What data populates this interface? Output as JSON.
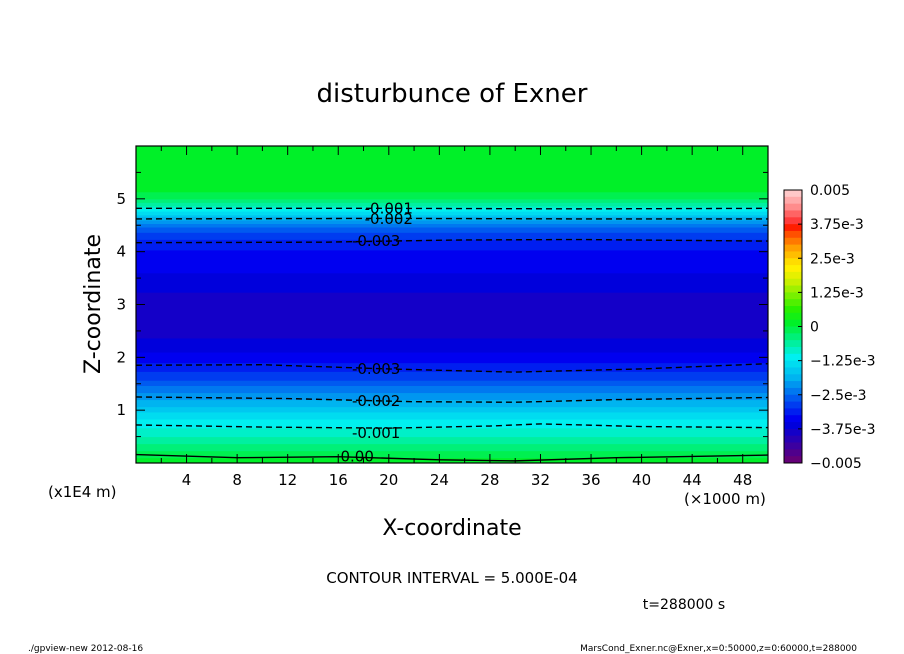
{
  "chart_data": {
    "type": "contour",
    "title": "disturbunce of Exner",
    "xlabel": "X-coordinate",
    "ylabel": "Z-coordinate",
    "x_unit": "(×1000 m)",
    "y_unit": "(x1E4 m)",
    "xlim": [
      0,
      50
    ],
    "ylim": [
      0,
      6
    ],
    "x_ticks": [
      "4",
      "8",
      "12",
      "16",
      "20",
      "24",
      "28",
      "32",
      "36",
      "40",
      "44",
      "48"
    ],
    "y_ticks": [
      "1",
      "2",
      "3",
      "4",
      "5"
    ],
    "contour_interval_text": "CONTOUR INTERVAL = 5.000E-04",
    "time_text": "t=288000 s",
    "colorbar": {
      "min": -0.005,
      "max": 0.005,
      "tick_labels": [
        "0.005",
        "3.75e-3",
        "2.5e-3",
        "1.25e-3",
        "0",
        "−1.25e-3",
        "−2.5e-3",
        "−3.75e-3",
        "−0.005"
      ],
      "levels": [
        {
          "lo": 0.00475,
          "hi": 0.005,
          "color": "#ffc8c8"
        },
        {
          "lo": 0.0045,
          "hi": 0.00475,
          "color": "#ffaaaa"
        },
        {
          "lo": 0.00425,
          "hi": 0.0045,
          "color": "#ff8c8c"
        },
        {
          "lo": 0.004,
          "hi": 0.00425,
          "color": "#ff6464"
        },
        {
          "lo": 0.00375,
          "hi": 0.004,
          "color": "#ff3c3c"
        },
        {
          "lo": 0.0035,
          "hi": 0.00375,
          "color": "#ff1e00"
        },
        {
          "lo": 0.00325,
          "hi": 0.0035,
          "color": "#ff5000"
        },
        {
          "lo": 0.003,
          "hi": 0.00325,
          "color": "#ff7800"
        },
        {
          "lo": 0.00275,
          "hi": 0.003,
          "color": "#ffa000"
        },
        {
          "lo": 0.0025,
          "hi": 0.00275,
          "color": "#ffbe00"
        },
        {
          "lo": 0.00225,
          "hi": 0.0025,
          "color": "#ffdc00"
        },
        {
          "lo": 0.002,
          "hi": 0.00225,
          "color": "#fff000"
        },
        {
          "lo": 0.00175,
          "hi": 0.002,
          "color": "#e6f000"
        },
        {
          "lo": 0.0015,
          "hi": 0.00175,
          "color": "#c8f000"
        },
        {
          "lo": 0.00125,
          "hi": 0.0015,
          "color": "#a0f000"
        },
        {
          "lo": 0.001,
          "hi": 0.00125,
          "color": "#78f000"
        },
        {
          "lo": 0.00075,
          "hi": 0.001,
          "color": "#50f000"
        },
        {
          "lo": 0.0005,
          "hi": 0.00075,
          "color": "#28f000"
        },
        {
          "lo": 0.00025,
          "hi": 0.0005,
          "color": "#14f014"
        },
        {
          "lo": 0,
          "hi": 0.00025,
          "color": "#00f028"
        },
        {
          "lo": -0.00025,
          "hi": 0,
          "color": "#00f050"
        },
        {
          "lo": -0.0005,
          "hi": -0.00025,
          "color": "#00f078"
        },
        {
          "lo": -0.00075,
          "hi": -0.0005,
          "color": "#00f0a0"
        },
        {
          "lo": -0.001,
          "hi": -0.00075,
          "color": "#00f0c8"
        },
        {
          "lo": -0.00125,
          "hi": -0.001,
          "color": "#00f0f0"
        },
        {
          "lo": -0.0015,
          "hi": -0.00125,
          "color": "#00dcf0"
        },
        {
          "lo": -0.00175,
          "hi": -0.0015,
          "color": "#00c8f0"
        },
        {
          "lo": -0.002,
          "hi": -0.00175,
          "color": "#00b4f0"
        },
        {
          "lo": -0.00225,
          "hi": -0.002,
          "color": "#0096f0"
        },
        {
          "lo": -0.0025,
          "hi": -0.00225,
          "color": "#0078f0"
        },
        {
          "lo": -0.00275,
          "hi": -0.0025,
          "color": "#005af0"
        },
        {
          "lo": -0.003,
          "hi": -0.00275,
          "color": "#003cf0"
        },
        {
          "lo": -0.00325,
          "hi": -0.003,
          "color": "#001ef0"
        },
        {
          "lo": -0.0035,
          "hi": -0.00325,
          "color": "#0000f0"
        },
        {
          "lo": -0.00375,
          "hi": -0.0035,
          "color": "#0000dc"
        },
        {
          "lo": -0.004,
          "hi": -0.00375,
          "color": "#1400c8"
        },
        {
          "lo": -0.00425,
          "hi": -0.004,
          "color": "#2800b4"
        },
        {
          "lo": -0.0045,
          "hi": -0.00425,
          "color": "#3c00a0"
        },
        {
          "lo": -0.00475,
          "hi": -0.0045,
          "color": "#50008c"
        },
        {
          "lo": -0.005,
          "hi": -0.00475,
          "color": "#640078"
        }
      ]
    },
    "vertical_profile": [
      {
        "z": 0.0,
        "v": 0.0002
      },
      {
        "z": 0.2,
        "v": -0.0002
      },
      {
        "z": 0.4,
        "v": -0.0006
      },
      {
        "z": 0.6,
        "v": -0.0009
      },
      {
        "z": 0.8,
        "v": -0.0012
      },
      {
        "z": 1.0,
        "v": -0.0016
      },
      {
        "z": 1.2,
        "v": -0.002
      },
      {
        "z": 1.4,
        "v": -0.0024
      },
      {
        "z": 1.6,
        "v": -0.0028
      },
      {
        "z": 1.8,
        "v": -0.0031
      },
      {
        "z": 2.0,
        "v": -0.0034
      },
      {
        "z": 2.2,
        "v": -0.0036
      },
      {
        "z": 2.4,
        "v": -0.0038
      },
      {
        "z": 2.6,
        "v": -0.0039
      },
      {
        "z": 2.8,
        "v": -0.0039
      },
      {
        "z": 3.0,
        "v": -0.0039
      },
      {
        "z": 3.2,
        "v": -0.0038
      },
      {
        "z": 3.4,
        "v": -0.0036
      },
      {
        "z": 3.6,
        "v": -0.0035
      },
      {
        "z": 3.8,
        "v": -0.0034
      },
      {
        "z": 4.0,
        "v": -0.0033
      },
      {
        "z": 4.2,
        "v": -0.0031
      },
      {
        "z": 4.4,
        "v": -0.0027
      },
      {
        "z": 4.6,
        "v": -0.002
      },
      {
        "z": 4.8,
        "v": -0.0011
      },
      {
        "z": 5.0,
        "v": -0.0002
      },
      {
        "z": 5.2,
        "v": 0.0001
      },
      {
        "z": 5.6,
        "v": 0.0001
      },
      {
        "z": 6.0,
        "v": 0.0001
      }
    ],
    "contours": [
      {
        "label": "-0.001",
        "style": "dashed",
        "points": [
          [
            0,
            0.72
          ],
          [
            10,
            0.68
          ],
          [
            20,
            0.66
          ],
          [
            28,
            0.7
          ],
          [
            32,
            0.74
          ],
          [
            40,
            0.69
          ],
          [
            50,
            0.67
          ]
        ]
      },
      {
        "label": "-0.002",
        "style": "dashed",
        "points": [
          [
            0,
            1.25
          ],
          [
            12,
            1.22
          ],
          [
            22,
            1.16
          ],
          [
            30,
            1.15
          ],
          [
            38,
            1.2
          ],
          [
            50,
            1.24
          ]
        ]
      },
      {
        "label": "-0.003",
        "style": "dashed",
        "points": [
          [
            0,
            1.85
          ],
          [
            10,
            1.86
          ],
          [
            20,
            1.78
          ],
          [
            30,
            1.72
          ],
          [
            40,
            1.78
          ],
          [
            50,
            1.88
          ]
        ]
      },
      {
        "label": "-0.003",
        "style": "dashed",
        "points": [
          [
            0,
            4.17
          ],
          [
            15,
            4.18
          ],
          [
            25,
            4.22
          ],
          [
            35,
            4.23
          ],
          [
            50,
            4.2
          ]
        ]
      },
      {
        "label": "-0.002",
        "style": "dashed",
        "points": [
          [
            0,
            4.62
          ],
          [
            20,
            4.63
          ],
          [
            35,
            4.62
          ],
          [
            50,
            4.62
          ]
        ]
      },
      {
        "label": "-0.001",
        "style": "dashed",
        "points": [
          [
            0,
            4.82
          ],
          [
            20,
            4.82
          ],
          [
            35,
            4.81
          ],
          [
            50,
            4.82
          ]
        ]
      },
      {
        "label": "0.00",
        "style": "solid",
        "points": [
          [
            0,
            0.16
          ],
          [
            8,
            0.1
          ],
          [
            16,
            0.12
          ],
          [
            24,
            0.06
          ],
          [
            30,
            0.04
          ],
          [
            38,
            0.1
          ],
          [
            50,
            0.15
          ]
        ]
      }
    ],
    "contour_labels": [
      {
        "text": "-0.001",
        "x": 20,
        "z": 4.82
      },
      {
        "text": "-0.002",
        "x": 20,
        "z": 4.62
      },
      {
        "text": "-0.003",
        "x": 19,
        "z": 4.2
      },
      {
        "text": "-0.003",
        "x": 19,
        "z": 1.78
      },
      {
        "text": "-0.002",
        "x": 19,
        "z": 1.17
      },
      {
        "text": "-0.001",
        "x": 19,
        "z": 0.57
      },
      {
        "text": "0.00",
        "x": 17.5,
        "z": 0.12
      }
    ]
  },
  "footer": {
    "left": "./gpview-new   2012-08-16",
    "right": "MarsCond_Exner.nc@Exner,x=0:50000,z=0:60000,t=288000"
  }
}
